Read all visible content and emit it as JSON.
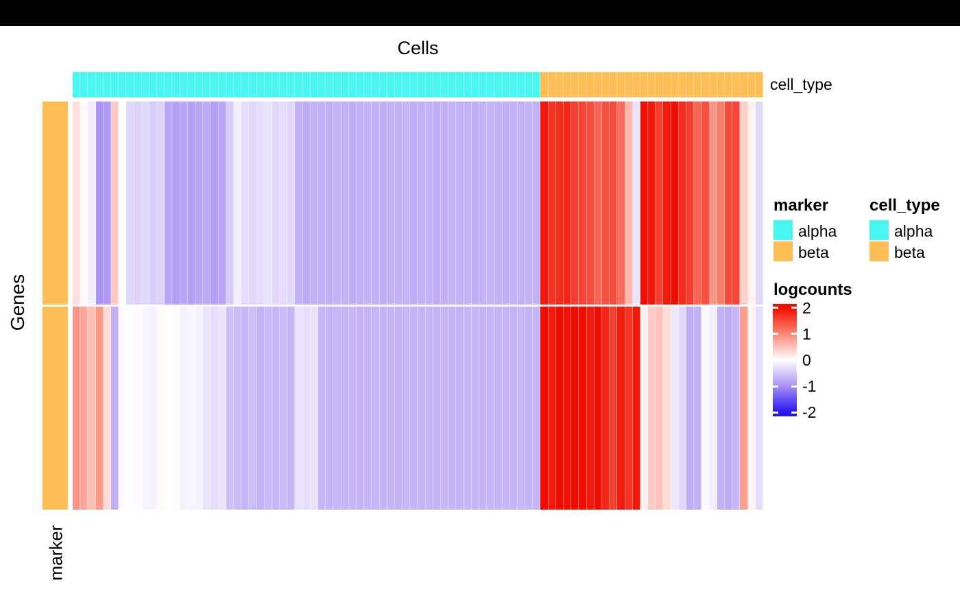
{
  "page": {
    "background": "#ffffff",
    "top_bar_color": "#000000"
  },
  "title": "Cells",
  "axis": {
    "columns_title": "Cells",
    "rows_title": "Genes",
    "col_annotation_label": "cell_type",
    "row_annotation_label": "marker"
  },
  "legends": {
    "marker": {
      "title": "marker",
      "items": [
        {
          "label": "alpha",
          "color": "#49F7F0"
        },
        {
          "label": "beta",
          "color": "#FDBE56"
        }
      ]
    },
    "cell_type": {
      "title": "cell_type",
      "items": [
        {
          "label": "alpha",
          "color": "#49F7F0"
        },
        {
          "label": "beta",
          "color": "#FDBE56"
        }
      ]
    },
    "logcounts": {
      "title": "logcounts",
      "tick_labels": [
        "2",
        "1",
        "0",
        "-1",
        "-2"
      ]
    }
  },
  "chart_data": {
    "type": "heatmap",
    "title": "Cells",
    "xlabel": "Cells",
    "ylabel": "Genes",
    "n_rows": 2,
    "n_cols": 90,
    "grid": true,
    "row_annotation": {
      "name": "marker",
      "values": [
        "beta",
        "beta"
      ]
    },
    "col_annotation": {
      "name": "cell_type",
      "groups": [
        {
          "label": "alpha",
          "count": 61
        },
        {
          "label": "beta",
          "count": 29
        }
      ]
    },
    "annotation_colors": {
      "alpha": "#49F7F0",
      "beta": "#FDBE56"
    },
    "colorscale": {
      "title": "logcounts",
      "domain": [
        -2.15,
        2.15
      ],
      "ticks": [
        2,
        1,
        0,
        -1,
        -2
      ],
      "anchors": [
        {
          "value": 2,
          "color": "#F20D00"
        },
        {
          "value": 1,
          "color": "#FB8877"
        },
        {
          "value": 0,
          "color": "#FFFFFF"
        },
        {
          "value": -1,
          "color": "#A78FF3"
        },
        {
          "value": -2,
          "color": "#2414F3"
        }
      ]
    },
    "values": [
      [
        0.25,
        0.05,
        -0.15,
        -0.95,
        -0.9,
        0.45,
        0,
        -0.35,
        -0.4,
        -0.35,
        -0.45,
        -0.4,
        -0.8,
        -0.85,
        -0.8,
        -0.85,
        -0.8,
        -0.75,
        -0.85,
        -0.8,
        -0.45,
        -0.15,
        -0.3,
        -0.35,
        -0.3,
        -0.25,
        -0.35,
        -0.3,
        -0.35,
        -0.7,
        -0.75,
        -0.7,
        -0.7,
        -0.72,
        -0.68,
        -0.7,
        -0.73,
        -0.7,
        -0.68,
        -0.7,
        -0.72,
        -0.7,
        -0.7,
        -0.68,
        -0.72,
        -0.7,
        -0.7,
        -0.73,
        -0.7,
        -0.68,
        -0.7,
        -0.7,
        -0.72,
        -0.7,
        -0.68,
        -0.7,
        -0.72,
        -0.7,
        -0.7,
        -0.68,
        -0.7,
        1.9,
        1.7,
        1.75,
        1.8,
        1.6,
        1.55,
        1.5,
        1.3,
        1.45,
        1.5,
        1.2,
        0.6,
        -0.25,
        2,
        1.9,
        1.6,
        1.9,
        2,
        1.75,
        1.6,
        1.3,
        1.45,
        0.9,
        1.1,
        1.5,
        1.55,
        0.4,
        0.1,
        -0.35
      ],
      [
        0.9,
        0.75,
        0.55,
        0.85,
        0.3,
        -0.7,
        0.05,
        0,
        0.05,
        -0.1,
        -0.12,
        0.05,
        0,
        0.05,
        -0.12,
        -0.1,
        -0.12,
        -0.25,
        -0.3,
        -0.25,
        -0.55,
        -0.6,
        -0.65,
        -0.6,
        -0.68,
        -0.62,
        -0.65,
        -0.6,
        -0.65,
        -0.25,
        -0.3,
        -0.25,
        -0.65,
        -0.67,
        -0.65,
        -0.66,
        -0.65,
        -0.68,
        -0.65,
        -0.65,
        -0.67,
        -0.65,
        -0.66,
        -0.65,
        -0.68,
        -0.65,
        -0.65,
        -0.67,
        -0.65,
        -0.66,
        -0.68,
        -0.65,
        -0.65,
        -0.67,
        -0.65,
        -0.66,
        -0.65,
        -0.68,
        -0.65,
        -0.66,
        -0.65,
        2,
        1.9,
        2,
        1.95,
        2,
        2,
        1.9,
        2,
        1.8,
        1.6,
        1.9,
        1.7,
        1.9,
        0.1,
        0.45,
        0.5,
        0.3,
        -0.2,
        -0.35,
        -0.75,
        -0.7,
        -0.05,
        -0.15,
        -0.7,
        -0.75,
        -0.65,
        0.8,
        0.1,
        -0.3
      ]
    ]
  },
  "colorbar_ticks": [
    {
      "label": "2",
      "pct": 3.5
    },
    {
      "label": "1",
      "pct": 26.7
    },
    {
      "label": "0",
      "pct": 50
    },
    {
      "label": "-1",
      "pct": 73.3
    },
    {
      "label": "-2",
      "pct": 96.5
    }
  ]
}
